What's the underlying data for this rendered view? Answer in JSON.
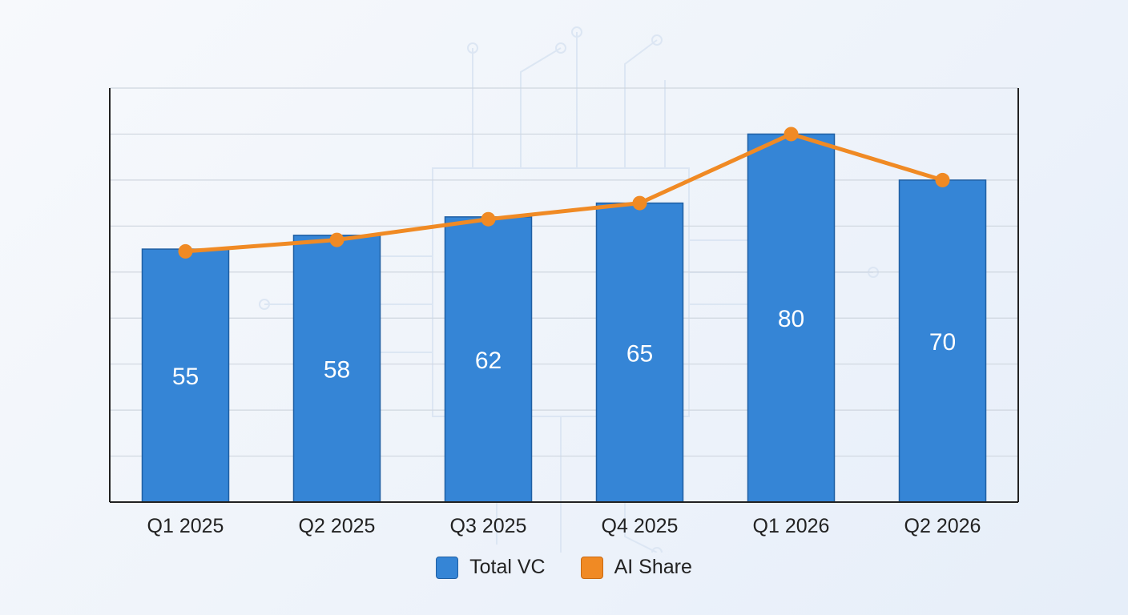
{
  "chart_data": {
    "type": "bar",
    "title": "",
    "xlabel": "",
    "ylabel": "",
    "categories": [
      "Q1 2025",
      "Q2 2025",
      "Q3 2025",
      "Q4 2025",
      "Q1 2026",
      "Q2 2026"
    ],
    "ylim": [
      0,
      90
    ],
    "grid": true,
    "legend_position": "bottom-center",
    "series": [
      {
        "name": "Total VC",
        "type": "bar",
        "color": "#3585d6",
        "values": [
          55,
          58,
          62,
          65,
          80,
          70
        ],
        "data_labels": [
          "55",
          "58",
          "62",
          "65",
          "80",
          "70"
        ]
      },
      {
        "name": "AI Share",
        "type": "line",
        "color": "#f08a24",
        "values": [
          54.5,
          57,
          61.5,
          65,
          80,
          70
        ]
      }
    ]
  }
}
